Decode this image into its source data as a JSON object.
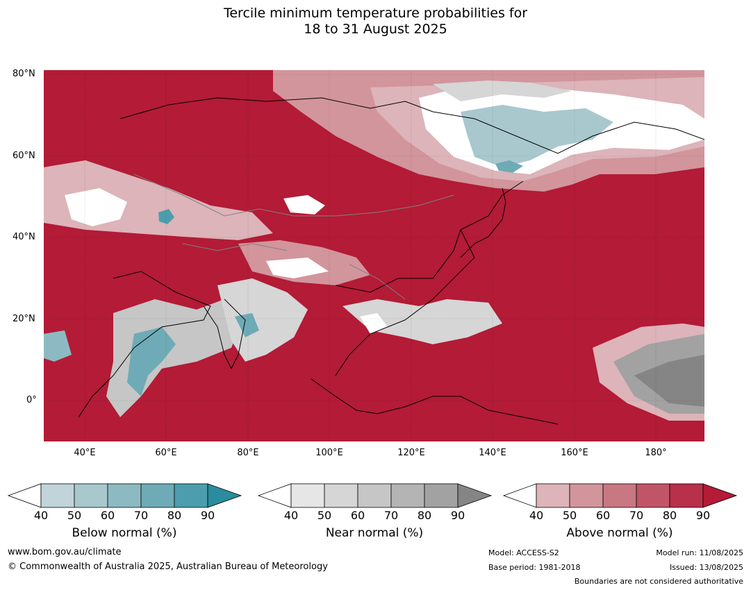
{
  "title_line1": "Tercile minimum temperature probabilities for",
  "title_line2": "18 to 31 August 2025",
  "map": {
    "lat_labels": [
      "80°N",
      "60°N",
      "40°N",
      "20°N",
      "0°"
    ],
    "lon_labels": [
      "40°E",
      "60°E",
      "80°E",
      "100°E",
      "120°E",
      "140°E",
      "160°E",
      "180°"
    ],
    "above_colors": [
      "#dcb4b9",
      "#d2959c",
      "#c87880",
      "#c05567",
      "#b8304a",
      "#b31b36"
    ],
    "below_colors": [
      "#c0d4da",
      "#a8c8ce",
      "#8dbac2",
      "#6eabb6",
      "#4c9eae",
      "#2a8c9e"
    ],
    "near_colors": [
      "#e6e6e6",
      "#d6d6d6",
      "#c6c6c6",
      "#b4b4b4",
      "#a2a2a2",
      "#858585"
    ]
  },
  "colorbars": [
    {
      "label": "Below normal (%)",
      "ticks": [
        "40",
        "50",
        "60",
        "70",
        "80",
        "90"
      ],
      "colors": [
        "#c0d4da",
        "#a8c8ce",
        "#8dbac2",
        "#6eabb6",
        "#4c9eae",
        "#2a8c9e"
      ],
      "overflow_color": "#2a8c9e"
    },
    {
      "label": "Near normal (%)",
      "ticks": [
        "40",
        "50",
        "60",
        "70",
        "80",
        "90"
      ],
      "colors": [
        "#e6e6e6",
        "#d6d6d6",
        "#c6c6c6",
        "#b4b4b4",
        "#a2a2a2",
        "#858585"
      ],
      "overflow_color": "#858585"
    },
    {
      "label": "Above normal (%)",
      "ticks": [
        "40",
        "50",
        "60",
        "70",
        "80",
        "90"
      ],
      "colors": [
        "#dcb4b9",
        "#d2959c",
        "#c87880",
        "#c05567",
        "#b8304a",
        "#b31b36"
      ],
      "overflow_color": "#b31b36"
    }
  ],
  "footer": {
    "website": "www.bom.gov.au/climate",
    "copyright": "© Commonwealth of Australia 2025, Australian Bureau of Meteorology",
    "model": "Model: ACCESS-S2",
    "base_period": "Base period: 1981-2018",
    "model_run": "Model run: 11/08/2025",
    "issued": "Issued: 13/08/2025",
    "disclaimer": "Boundaries are not considered authoritative"
  }
}
